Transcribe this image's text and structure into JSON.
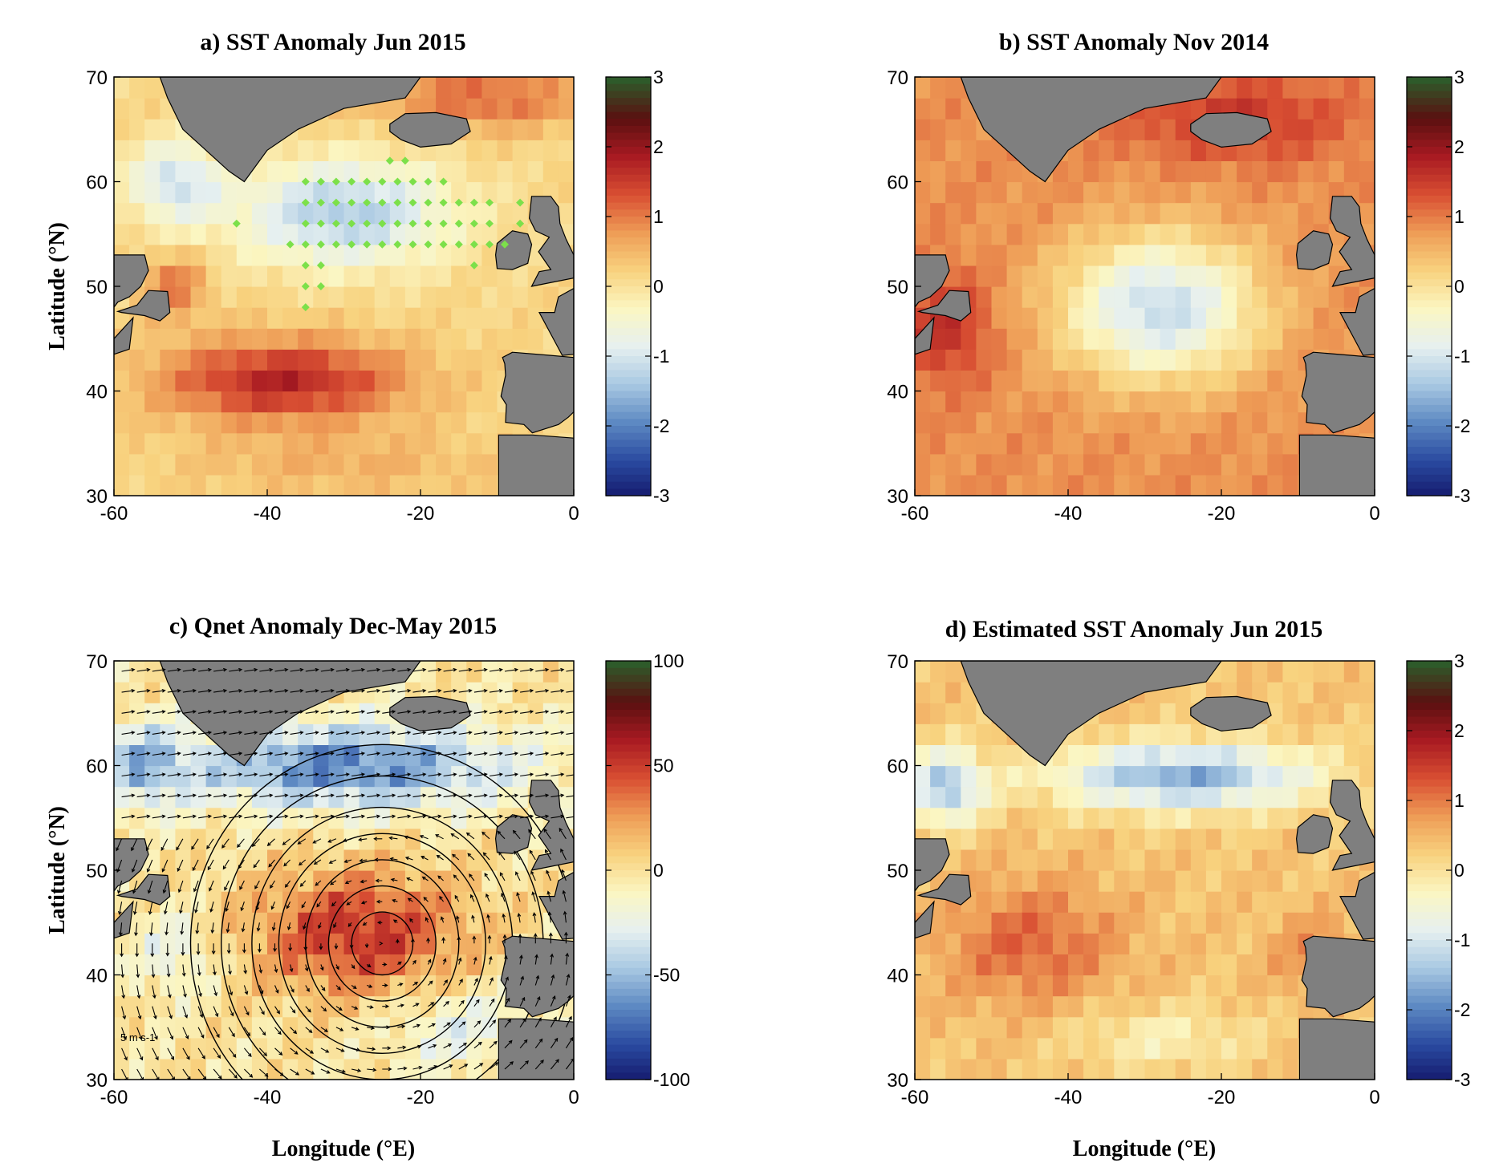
{
  "figure": {
    "panels": [
      {
        "id": "a",
        "title": "a) SST Anomaly Jun 2015",
        "ylabel": "Latitude (°N)",
        "xlabel": "",
        "xticks": [
          "-60",
          "-40",
          "-20",
          "0"
        ],
        "yticks": [
          "70",
          "60",
          "50",
          "40",
          "30"
        ],
        "colorbar_ticks": [
          "3",
          "2",
          "1",
          "0",
          "-1",
          "-2",
          "-3"
        ],
        "field": "sst_jun2015",
        "markers": true
      },
      {
        "id": "b",
        "title": "b) SST Anomaly Nov 2014",
        "ylabel": "",
        "xlabel": "",
        "xticks": [
          "-60",
          "-40",
          "-20",
          "0"
        ],
        "yticks": [
          "70",
          "60",
          "50",
          "40",
          "30"
        ],
        "colorbar_ticks": [
          "3",
          "2",
          "1",
          "0",
          "-1",
          "-2",
          "-3"
        ],
        "field": "sst_nov2014"
      },
      {
        "id": "c",
        "title": "c) Qnet Anomaly Dec-May 2015",
        "ylabel": "Latitude (°N)",
        "xlabel": "Longitude (°E)",
        "xticks": [
          "-60",
          "-40",
          "-20",
          "0"
        ],
        "yticks": [
          "70",
          "60",
          "50",
          "40",
          "30"
        ],
        "colorbar_ticks": [
          "100",
          "50",
          "0",
          "-50",
          "-100"
        ],
        "field": "qnet",
        "vectors": true,
        "contours": true,
        "reference_vector_label": "5 m s-1"
      },
      {
        "id": "d",
        "title": "d) Estimated SST Anomaly Jun 2015",
        "ylabel": "",
        "xlabel": "Longitude (°E)",
        "xticks": [
          "-60",
          "-40",
          "-20",
          "0"
        ],
        "yticks": [
          "70",
          "60",
          "50",
          "40",
          "30"
        ],
        "colorbar_ticks": [
          "3",
          "2",
          "1",
          "0",
          "-1",
          "-2",
          "-3"
        ],
        "field": "sst_est"
      }
    ]
  },
  "map_data": {
    "lon_range": [
      -60,
      0
    ],
    "lat_range": [
      30,
      70
    ],
    "sst_range": [
      -3,
      3
    ],
    "qnet_range": [
      -100,
      100
    ],
    "colormap": [
      "#14186b",
      "#2a4aa0",
      "#5c88c2",
      "#a8c8e2",
      "#e6f0f0",
      "#fbf6c2",
      "#f8d27e",
      "#ee9c56",
      "#d84e32",
      "#a81a22",
      "#5a1010",
      "#2e5a2a"
    ],
    "land_color": "#7f7f7f",
    "marker_color": "#7ce04a",
    "markers": [
      [
        -24,
        62
      ],
      [
        -22,
        62
      ],
      [
        -35,
        60
      ],
      [
        -33,
        60
      ],
      [
        -31,
        60
      ],
      [
        -29,
        60
      ],
      [
        -27,
        60
      ],
      [
        -25,
        60
      ],
      [
        -23,
        60
      ],
      [
        -21,
        60
      ],
      [
        -19,
        60
      ],
      [
        -17,
        60
      ],
      [
        -35,
        58
      ],
      [
        -33,
        58
      ],
      [
        -31,
        58
      ],
      [
        -29,
        58
      ],
      [
        -27,
        58
      ],
      [
        -25,
        58
      ],
      [
        -23,
        58
      ],
      [
        -21,
        58
      ],
      [
        -19,
        58
      ],
      [
        -17,
        58
      ],
      [
        -15,
        58
      ],
      [
        -13,
        58
      ],
      [
        -11,
        58
      ],
      [
        -7,
        58
      ],
      [
        -44,
        56
      ],
      [
        -35,
        56
      ],
      [
        -33,
        56
      ],
      [
        -31,
        56
      ],
      [
        -29,
        56
      ],
      [
        -27,
        56
      ],
      [
        -25,
        56
      ],
      [
        -23,
        56
      ],
      [
        -21,
        56
      ],
      [
        -19,
        56
      ],
      [
        -17,
        56
      ],
      [
        -15,
        56
      ],
      [
        -13,
        56
      ],
      [
        -11,
        56
      ],
      [
        -7,
        56
      ],
      [
        -37,
        54
      ],
      [
        -35,
        54
      ],
      [
        -33,
        54
      ],
      [
        -31,
        54
      ],
      [
        -29,
        54
      ],
      [
        -27,
        54
      ],
      [
        -25,
        54
      ],
      [
        -23,
        54
      ],
      [
        -21,
        54
      ],
      [
        -19,
        54
      ],
      [
        -17,
        54
      ],
      [
        -15,
        54
      ],
      [
        -13,
        54
      ],
      [
        -11,
        54
      ],
      [
        -9,
        54
      ],
      [
        -35,
        52
      ],
      [
        -33,
        52
      ],
      [
        -13,
        52
      ],
      [
        -35,
        50
      ],
      [
        -33,
        50
      ],
      [
        -35,
        48
      ]
    ]
  }
}
